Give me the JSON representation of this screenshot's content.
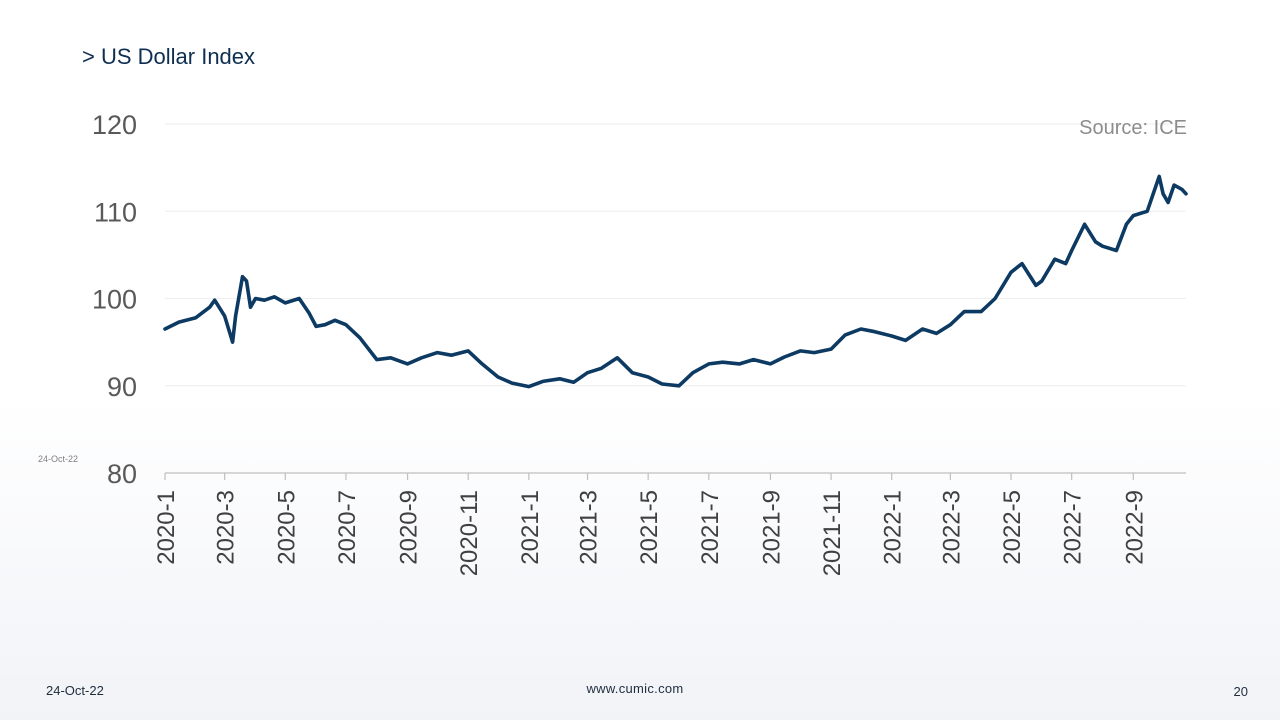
{
  "slide": {
    "title": "> US Dollar Index",
    "side_date": "24-Oct-22",
    "footer_date": "24-Oct-22",
    "footer_url": "www.cumic.com",
    "page_number": "20"
  },
  "colors": {
    "line": "#0d3a63",
    "grid": "#eeeeee",
    "axis": "#bfbfbf"
  },
  "chart_data": {
    "type": "line",
    "title": "",
    "xlabel": "",
    "ylabel": "",
    "source": "Source: ICE",
    "ylim": [
      80,
      120
    ],
    "yticks": [
      80,
      90,
      100,
      110,
      120
    ],
    "grid": true,
    "legend": "none",
    "xlim": [
      "2020-01-01",
      "2022-10-24"
    ],
    "xticks": [
      {
        "label": "2020-1",
        "date": "2020-01-01"
      },
      {
        "label": "2020-3",
        "date": "2020-03-01"
      },
      {
        "label": "2020-5",
        "date": "2020-05-01"
      },
      {
        "label": "2020-7",
        "date": "2020-07-01"
      },
      {
        "label": "2020-9",
        "date": "2020-09-01"
      },
      {
        "label": "2020-11",
        "date": "2020-11-01"
      },
      {
        "label": "2021-1",
        "date": "2021-01-01"
      },
      {
        "label": "2021-3",
        "date": "2021-03-01"
      },
      {
        "label": "2021-5",
        "date": "2021-05-01"
      },
      {
        "label": "2021-7",
        "date": "2021-07-01"
      },
      {
        "label": "2021-9",
        "date": "2021-09-01"
      },
      {
        "label": "2021-11",
        "date": "2021-11-01"
      },
      {
        "label": "2022-1",
        "date": "2022-01-01"
      },
      {
        "label": "2022-3",
        "date": "2022-03-01"
      },
      {
        "label": "2022-5",
        "date": "2022-05-01"
      },
      {
        "label": "2022-7",
        "date": "2022-07-01"
      },
      {
        "label": "2022-9",
        "date": "2022-09-01"
      }
    ],
    "series": [
      {
        "name": "",
        "x": [
          "2020-01-01",
          "2020-01-15",
          "2020-02-01",
          "2020-02-15",
          "2020-02-20",
          "2020-03-01",
          "2020-03-09",
          "2020-03-12",
          "2020-03-19",
          "2020-03-23",
          "2020-03-27",
          "2020-04-01",
          "2020-04-10",
          "2020-04-20",
          "2020-05-01",
          "2020-05-15",
          "2020-05-25",
          "2020-06-01",
          "2020-06-10",
          "2020-06-20",
          "2020-07-01",
          "2020-07-15",
          "2020-08-01",
          "2020-08-15",
          "2020-09-01",
          "2020-09-15",
          "2020-10-01",
          "2020-10-15",
          "2020-11-01",
          "2020-11-15",
          "2020-12-01",
          "2020-12-15",
          "2021-01-01",
          "2021-01-15",
          "2021-02-01",
          "2021-02-15",
          "2021-03-01",
          "2021-03-15",
          "2021-03-31",
          "2021-04-15",
          "2021-05-01",
          "2021-05-15",
          "2021-06-01",
          "2021-06-15",
          "2021-07-01",
          "2021-07-15",
          "2021-08-01",
          "2021-08-15",
          "2021-09-01",
          "2021-09-15",
          "2021-10-01",
          "2021-10-15",
          "2021-11-01",
          "2021-11-15",
          "2021-12-01",
          "2021-12-15",
          "2022-01-01",
          "2022-01-15",
          "2022-02-01",
          "2022-02-15",
          "2022-03-01",
          "2022-03-15",
          "2022-04-01",
          "2022-04-15",
          "2022-05-01",
          "2022-05-12",
          "2022-05-26",
          "2022-06-01",
          "2022-06-14",
          "2022-06-25",
          "2022-07-01",
          "2022-07-14",
          "2022-07-25",
          "2022-08-01",
          "2022-08-15",
          "2022-08-25",
          "2022-09-01",
          "2022-09-15",
          "2022-09-27",
          "2022-10-01",
          "2022-10-06",
          "2022-10-12",
          "2022-10-20",
          "2022-10-24"
        ],
        "values": [
          96.5,
          97.3,
          97.8,
          99.0,
          99.8,
          98.0,
          95.0,
          98.0,
          102.5,
          102.0,
          99.0,
          100.0,
          99.8,
          100.2,
          99.5,
          100.0,
          98.3,
          96.8,
          97.0,
          97.5,
          97.0,
          95.5,
          93.0,
          93.2,
          92.5,
          93.2,
          93.8,
          93.5,
          94.0,
          92.5,
          91.0,
          90.3,
          89.9,
          90.5,
          90.8,
          90.4,
          91.5,
          92.0,
          93.2,
          91.5,
          91.0,
          90.2,
          90.0,
          91.5,
          92.5,
          92.7,
          92.5,
          93.0,
          92.5,
          93.3,
          94.0,
          93.8,
          94.2,
          95.8,
          96.5,
          96.2,
          95.7,
          95.2,
          96.5,
          96.0,
          97.0,
          98.5,
          98.5,
          100.0,
          103.0,
          104.0,
          101.5,
          102.0,
          104.5,
          104.0,
          105.5,
          108.5,
          106.5,
          106.0,
          105.5,
          108.5,
          109.5,
          110.0,
          114.0,
          112.0,
          111.0,
          113.0,
          112.5,
          112.0
        ]
      }
    ]
  }
}
